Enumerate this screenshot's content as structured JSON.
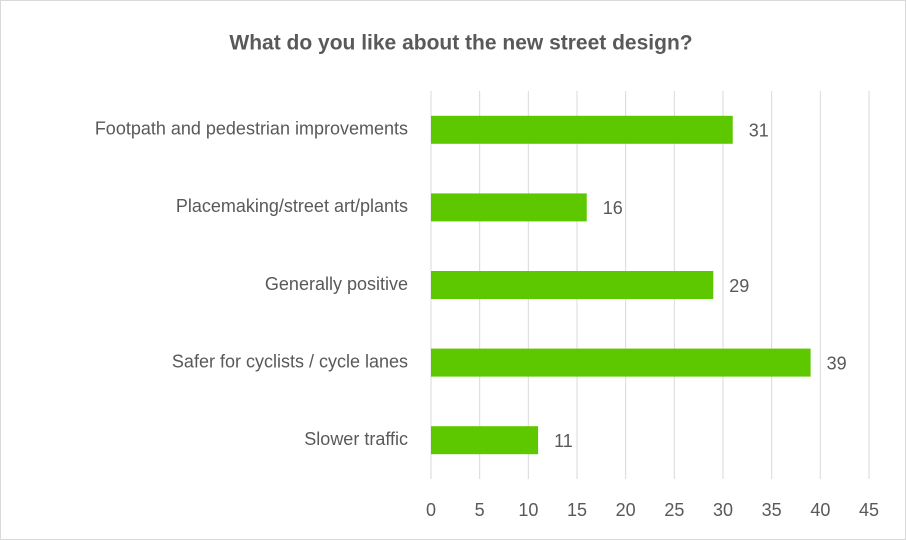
{
  "chart_data": {
    "type": "bar",
    "orientation": "horizontal",
    "title": "What do you like about the new street design?",
    "categories": [
      "Footpath and pedestrian improvements",
      "Placemaking/street art/plants",
      "Generally positive",
      "Safer for cyclists / cycle lanes",
      "Slower traffic"
    ],
    "values": [
      31,
      16,
      29,
      39,
      11
    ],
    "color": "#5dc800",
    "xlim": [
      0,
      45
    ],
    "xticks": [
      0,
      5,
      10,
      15,
      20,
      25,
      30,
      35,
      40,
      45
    ],
    "grid": true
  }
}
